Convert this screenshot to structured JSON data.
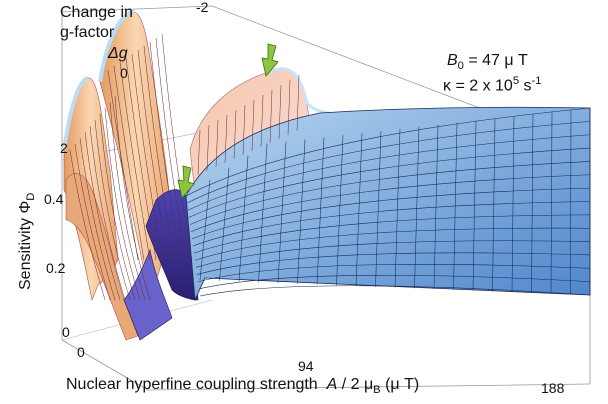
{
  "chart_data": {
    "type": "surface",
    "z_axis": {
      "label_prefix": "Sensitivity Φ",
      "label_sub": "D",
      "ticks": [
        "0",
        "0.2",
        "0.4"
      ],
      "range": [
        0,
        0.5
      ]
    },
    "x_axis": {
      "label_main": "Nuclear hyperfine coupling strength",
      "label_italic": "A",
      "label_mid": " / 2 μ",
      "label_sub": "B",
      "label_unit": " (μ T)",
      "ticks": [
        "0",
        "94",
        "188"
      ],
      "range": [
        0,
        188
      ]
    },
    "y_axis": {
      "label_line1": "Change in",
      "label_line2": "g-factor",
      "symbol": "Δg",
      "ticks": [
        "2",
        "0",
        "-2"
      ],
      "range": [
        2,
        -2
      ]
    },
    "annotations": {
      "b0_symbol": "B",
      "b0_sub": "0",
      "b0_value": " = 47 μ T",
      "kappa_prefix": "κ = 2 x 10",
      "kappa_exp": "5",
      "kappa_unit": " s",
      "kappa_unit_exp": "-1",
      "arrows": 2
    },
    "colors": {
      "low_surface": "#5b8fd0",
      "high_surface": "#f2b98f",
      "valley": "#3a2f8f",
      "arrow": "#8cc63f"
    }
  }
}
